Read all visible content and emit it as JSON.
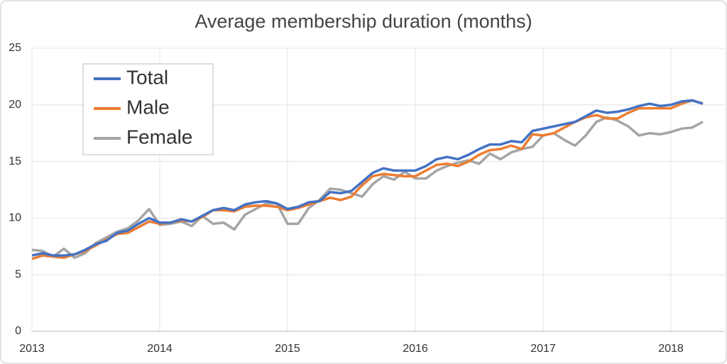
{
  "chart_data": {
    "type": "line",
    "title": "Average membership duration (months)",
    "categories": [
      "2013",
      null,
      null,
      null,
      null,
      null,
      null,
      null,
      null,
      null,
      null,
      null,
      "2014",
      null,
      null,
      null,
      null,
      null,
      null,
      null,
      null,
      null,
      null,
      null,
      "2015",
      null,
      null,
      null,
      null,
      null,
      null,
      null,
      null,
      null,
      null,
      null,
      "2016",
      null,
      null,
      null,
      null,
      null,
      null,
      null,
      null,
      null,
      null,
      null,
      "2017",
      null,
      null,
      null,
      null,
      null,
      null,
      null,
      null,
      null,
      null,
      null,
      "2018",
      null,
      null,
      null
    ],
    "series": [
      {
        "name": "Total",
        "color": "#4472c4",
        "values": [
          6.7,
          6.9,
          6.7,
          6.7,
          6.8,
          7.2,
          7.7,
          8.0,
          8.7,
          8.9,
          9.5,
          10.0,
          9.6,
          9.6,
          9.9,
          9.7,
          10.2,
          10.7,
          10.9,
          10.7,
          11.2,
          11.4,
          11.5,
          11.3,
          10.8,
          11.0,
          11.4,
          11.5,
          12.3,
          12.2,
          12.4,
          13.2,
          14.0,
          14.4,
          14.2,
          14.2,
          14.2,
          14.6,
          15.2,
          15.4,
          15.2,
          15.6,
          16.1,
          16.5,
          16.5,
          16.8,
          16.7,
          17.7,
          17.9,
          18.1,
          18.3,
          18.5,
          19.0,
          19.5,
          19.3,
          19.4,
          19.6,
          19.9,
          20.1,
          19.9,
          20.0,
          20.3,
          20.4,
          20.1
        ]
      },
      {
        "name": "Male",
        "color": "#ed7d31",
        "values": [
          6.4,
          6.7,
          6.6,
          6.5,
          6.8,
          7.1,
          7.6,
          8.1,
          8.6,
          8.7,
          9.2,
          9.7,
          9.5,
          9.6,
          9.8,
          9.7,
          10.1,
          10.7,
          10.7,
          10.6,
          11.0,
          11.1,
          11.1,
          11.0,
          10.7,
          10.9,
          11.2,
          11.5,
          11.8,
          11.6,
          11.9,
          12.9,
          13.7,
          13.9,
          13.8,
          13.7,
          13.7,
          14.2,
          14.7,
          14.8,
          14.6,
          15.0,
          15.6,
          16.0,
          16.1,
          16.4,
          16.1,
          17.4,
          17.3,
          17.5,
          18.0,
          18.5,
          18.9,
          19.1,
          18.8,
          18.8,
          19.3,
          19.7,
          19.7,
          19.7,
          19.7,
          20.1,
          20.4,
          20.1
        ]
      },
      {
        "name": "Female",
        "color": "#a5a5a5",
        "values": [
          7.2,
          7.1,
          6.6,
          7.3,
          6.5,
          6.9,
          7.8,
          8.3,
          8.8,
          9.1,
          9.8,
          10.8,
          9.4,
          9.5,
          9.7,
          9.3,
          10.2,
          9.5,
          9.6,
          9.0,
          10.3,
          10.8,
          11.3,
          11.3,
          9.5,
          9.5,
          10.9,
          11.6,
          12.6,
          12.5,
          12.2,
          11.9,
          13.0,
          13.7,
          13.4,
          14.1,
          13.5,
          13.5,
          14.2,
          14.6,
          14.9,
          15.1,
          14.8,
          15.7,
          15.2,
          15.8,
          16.1,
          16.3,
          17.3,
          17.5,
          16.9,
          16.4,
          17.3,
          18.5,
          18.9,
          18.6,
          18.1,
          17.3,
          17.5,
          17.4,
          17.6,
          17.9,
          18.0,
          18.5
        ]
      }
    ],
    "ylim": [
      0,
      25
    ],
    "yticks": [
      0,
      5,
      10,
      15,
      20,
      25
    ],
    "grid": true,
    "legend": "upper-left"
  }
}
